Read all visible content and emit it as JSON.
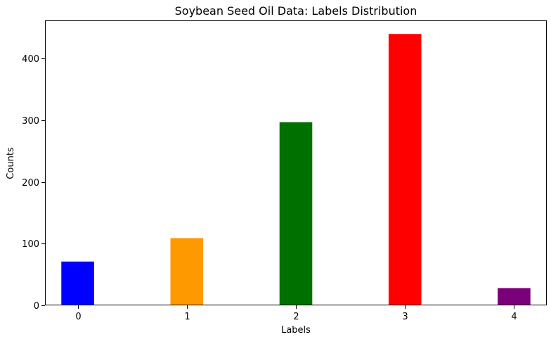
{
  "chart_data": {
    "type": "bar",
    "title": "Soybean Seed Oil Data: Labels Distribution",
    "xlabel": "Labels",
    "ylabel": "Counts",
    "categories": [
      "0",
      "1",
      "2",
      "3",
      "4"
    ],
    "values": [
      71,
      109,
      297,
      440,
      28
    ],
    "colors": [
      "#0000ff",
      "#ff9900",
      "#007000",
      "#ff0000",
      "#7a007a"
    ],
    "ylim": [
      0,
      462
    ],
    "yticks": [
      0,
      100,
      200,
      300,
      400
    ],
    "grid": false,
    "legend": "none"
  }
}
